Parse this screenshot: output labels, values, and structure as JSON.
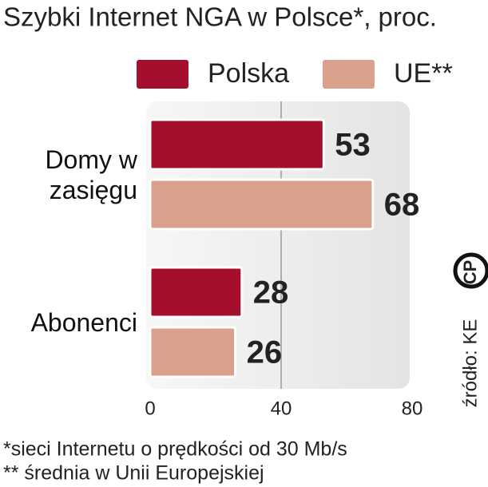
{
  "chart_data": {
    "type": "bar",
    "orientation": "horizontal",
    "title": "Szybki Internet NGA w Polsce*, proc.",
    "categories": [
      "Domy w zasięgu",
      "Abonenci"
    ],
    "series": [
      {
        "name": "Polska",
        "color": "#a50f2d",
        "values": [
          53,
          28
        ]
      },
      {
        "name": "UE**",
        "color": "#d9a08c",
        "values": [
          68,
          26
        ]
      }
    ],
    "xlim": [
      0,
      80
    ],
    "xticks": [
      0,
      40,
      80
    ],
    "grid": true,
    "footnotes": [
      "*sieci Internetu o prędkości od 30 Mb/s",
      "** średnia w Unii Europejskiej"
    ],
    "source": "źródło: KE",
    "logo": "CP"
  }
}
